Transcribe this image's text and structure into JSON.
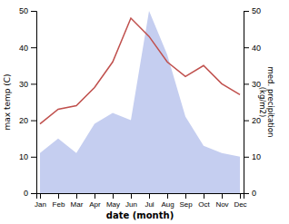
{
  "chart_data": {
    "type": "line",
    "x_label": "date (month)",
    "y_label": "max temp (C)",
    "y2_label": "med. precipitation\n(kg/m2)",
    "categories": [
      "Jan",
      "Feb",
      "Mar",
      "Apr",
      "May",
      "Jun",
      "Jul",
      "Aug",
      "Sep",
      "Oct",
      "Nov",
      "Dec"
    ],
    "series": [
      {
        "type": "area",
        "axis": "y2",
        "color": "#c5cef0",
        "values": [
          11,
          15,
          11,
          19,
          22,
          20,
          50,
          38,
          21,
          13,
          11,
          10
        ]
      },
      {
        "type": "line",
        "color": "#c0504d",
        "values": [
          19,
          23,
          24,
          29,
          36,
          48,
          43,
          36,
          32,
          35,
          30,
          27
        ]
      }
    ],
    "ylim": [
      0,
      50
    ],
    "yticks": [
      0,
      10,
      20,
      30,
      40,
      50
    ],
    "y2lim": [
      0,
      50
    ],
    "y2ticks": [
      0,
      10,
      20,
      30,
      40,
      50
    ]
  }
}
